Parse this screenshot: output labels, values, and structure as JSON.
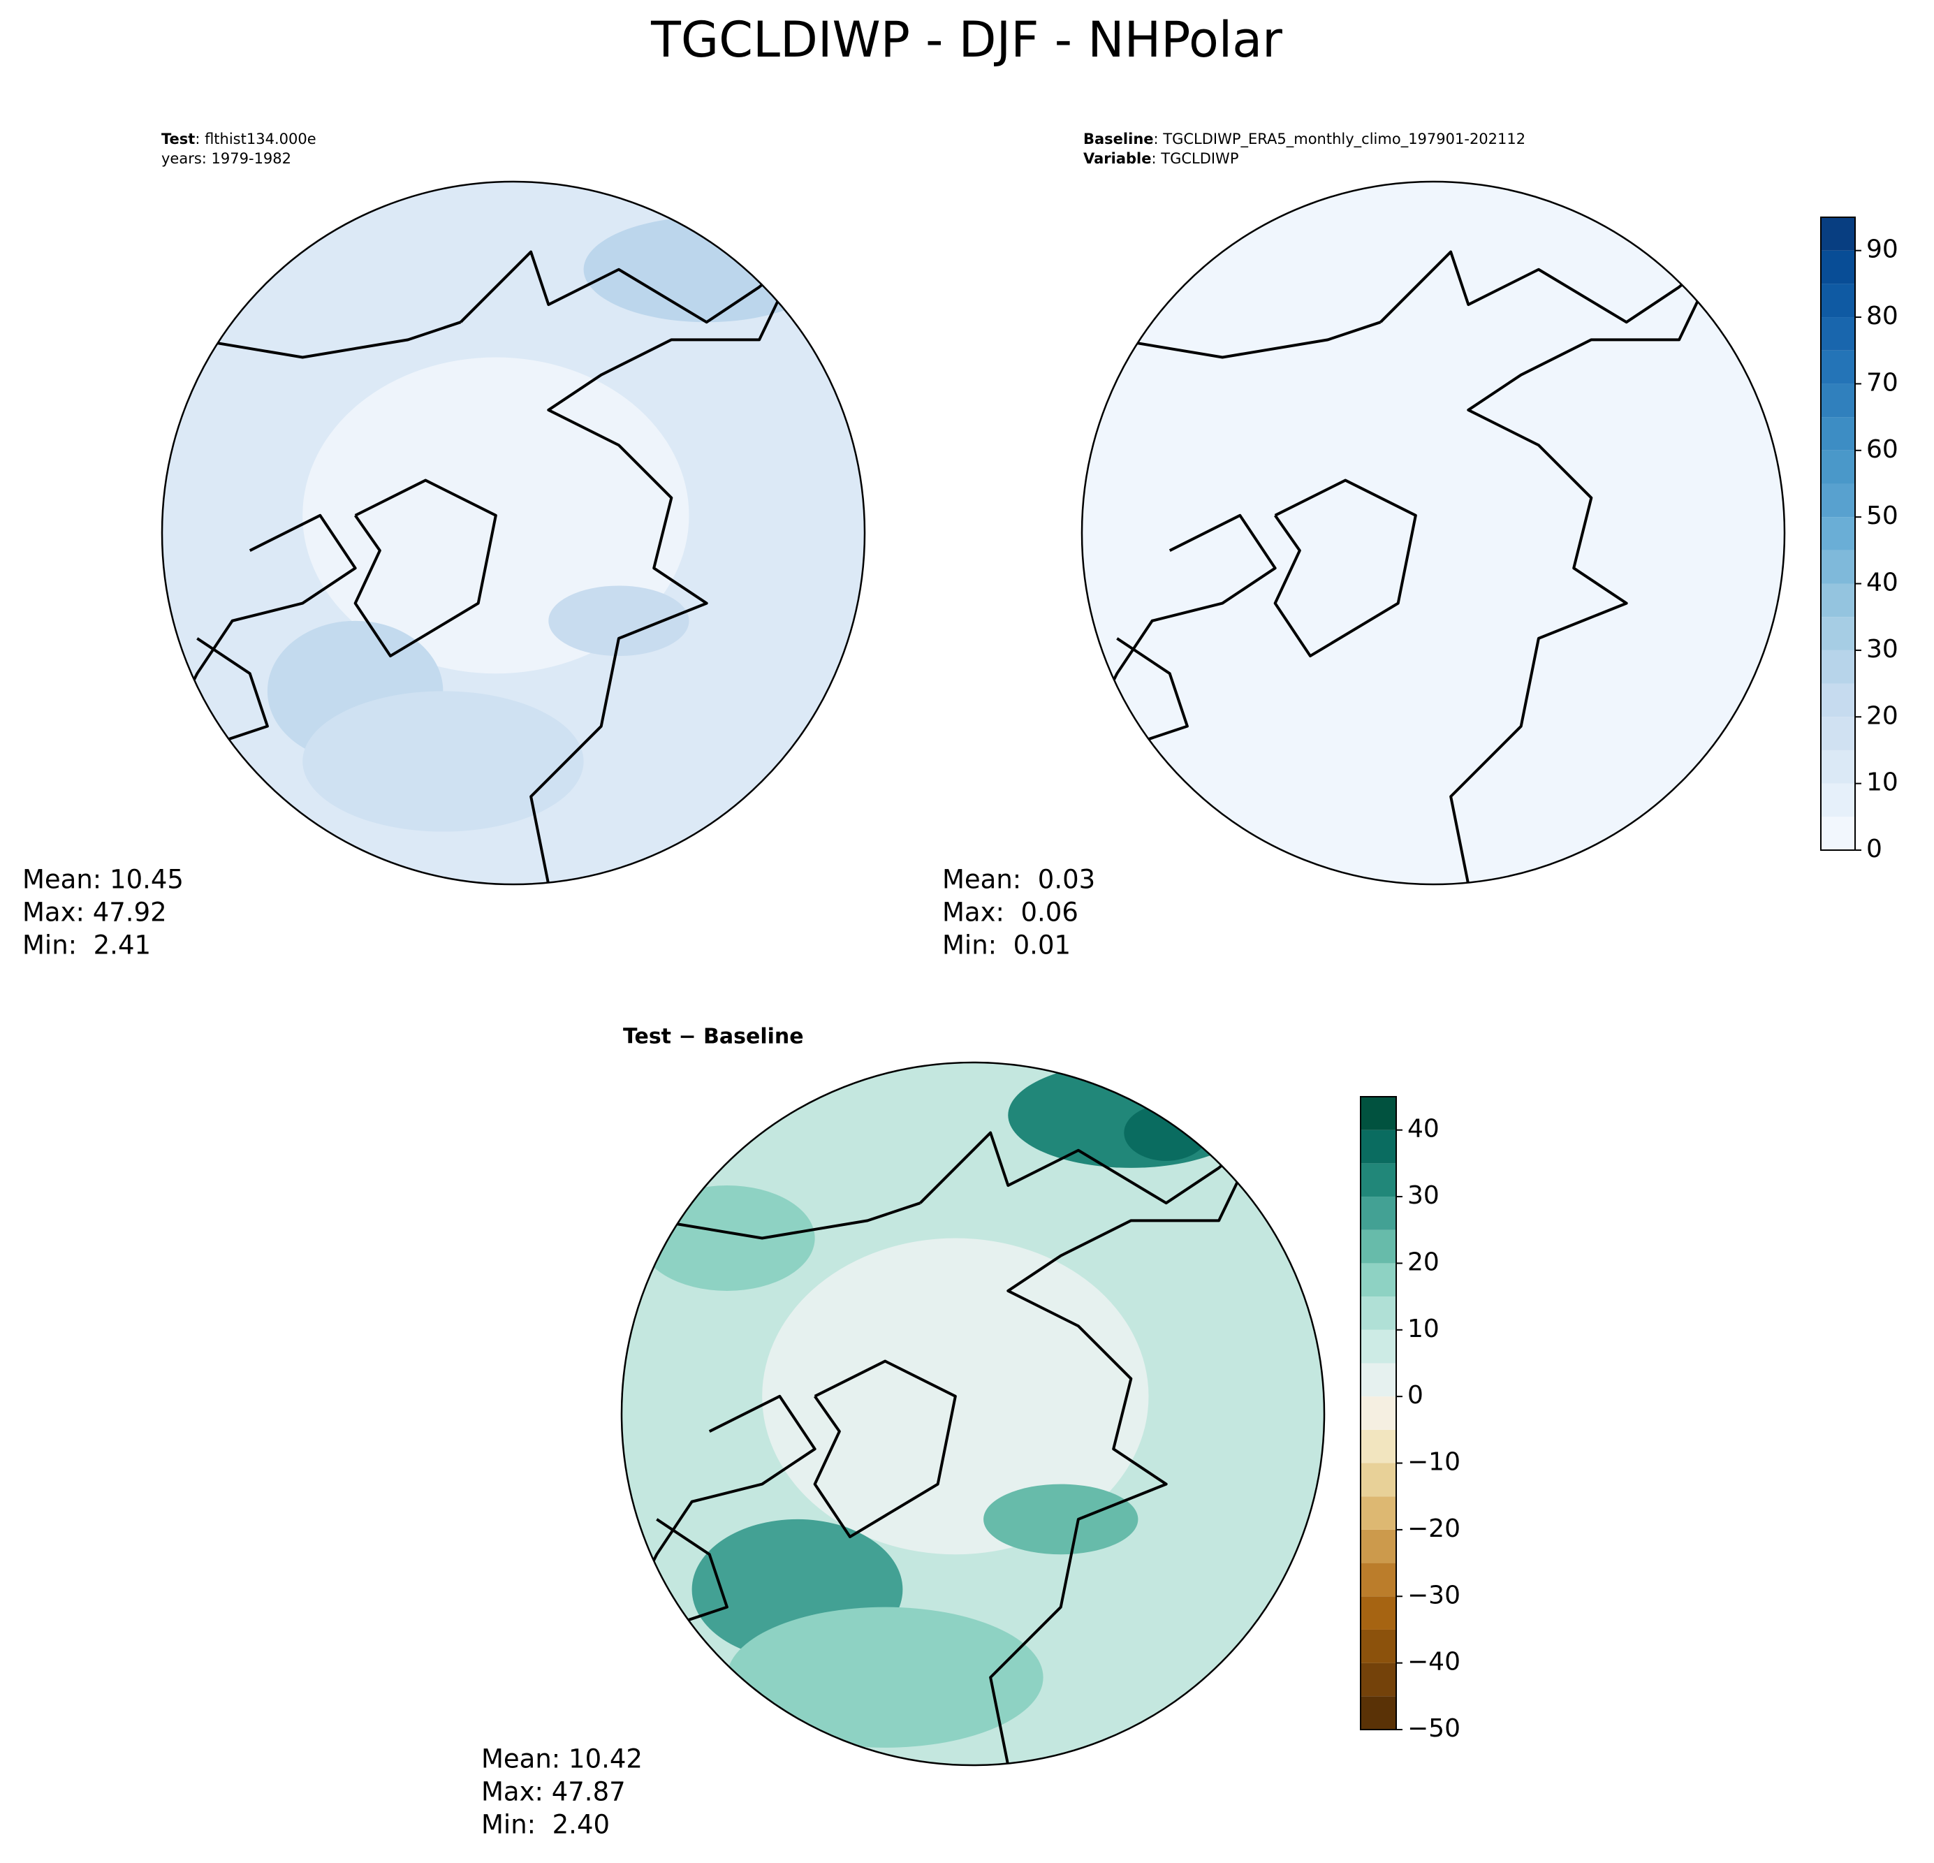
{
  "title": "TGCLDIWP - DJF - NHPolar",
  "chart_data": [
    {
      "type": "map",
      "header": [
        {
          "bold": "Test",
          "text": ": flthist134.000e"
        },
        {
          "text": "years: 1979-1982"
        }
      ],
      "stats": [
        "Mean: 10.45",
        "Max: 47.92",
        "Min:  2.41"
      ]
    },
    {
      "type": "map",
      "header": [
        {
          "bold": "Baseline",
          "text": ": TGCLDIWP_ERA5_monthly_climo_197901-202112"
        },
        {
          "bold": "Variable",
          "text": ": TGCLDIWP"
        }
      ],
      "stats": [
        "Mean:  0.03",
        "Max:  0.06",
        "Min:  0.01"
      ],
      "colorbar": {
        "levels": [
          0,
          5,
          10,
          15,
          20,
          25,
          30,
          35,
          40,
          45,
          50,
          55,
          60,
          65,
          70,
          75,
          80,
          85,
          90,
          95
        ],
        "colors": [
          "#f2f7fd",
          "#e6f0fa",
          "#dbe9f6",
          "#d0e1f2",
          "#c6dbef",
          "#b7d4ea",
          "#a6cde4",
          "#94c4df",
          "#7fb9da",
          "#6aaed6",
          "#58a1cf",
          "#4a98c9",
          "#3d8dc4",
          "#3080bd",
          "#2474b7",
          "#1966ad",
          "#0f5aa3",
          "#084d96",
          "#083e81"
        ],
        "ylim": [
          0,
          95
        ],
        "yticks": [
          0,
          10,
          20,
          30,
          40,
          50,
          60,
          70,
          80,
          90
        ]
      }
    },
    {
      "type": "map",
      "title": "Test − Baseline",
      "stats": [
        "Mean: 10.42",
        "Max: 47.87",
        "Min:  2.40"
      ],
      "colorbar": {
        "levels": [
          -50,
          -45,
          -40,
          -35,
          -30,
          -25,
          -20,
          -15,
          -10,
          -5,
          0,
          5,
          10,
          15,
          20,
          25,
          30,
          35,
          40,
          45
        ],
        "colors": [
          "#5a3206",
          "#74420a",
          "#8c520c",
          "#a66412",
          "#bb7d2b",
          "#cc9a4c",
          "#ddb872",
          "#e8d198",
          "#f2e5bf",
          "#f5efe1",
          "#e6f1ef",
          "#cdebe5",
          "#b0e0d6",
          "#8ed2c3",
          "#67bbaa",
          "#43a194",
          "#218779",
          "#0a6c60",
          "#01523f"
        ],
        "ylim": [
          -50,
          45
        ],
        "yticks": [
          {
            "value": -50,
            "label": "−50"
          },
          {
            "value": -40,
            "label": "−40"
          },
          {
            "value": -30,
            "label": "−30"
          },
          {
            "value": -20,
            "label": "−20"
          },
          {
            "value": -10,
            "label": "−10"
          },
          0,
          10,
          20,
          30,
          40
        ]
      }
    }
  ]
}
